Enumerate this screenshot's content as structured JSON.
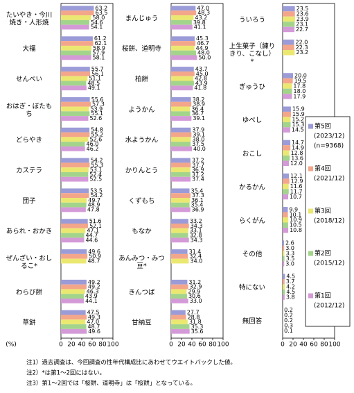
{
  "chart_data": [
    {
      "type": "bar",
      "orientation": "horizontal",
      "xlabel": "(%)",
      "xlim": [
        0,
        100
      ],
      "xticks": [
        0,
        20,
        40,
        60,
        80,
        100
      ],
      "categories": [
        "たいやき・今川焼き・人形焼",
        "大福",
        "せんべい",
        "おはぎ・ぼたもち",
        "どらやき",
        "カステラ",
        "団子",
        "あられ・おかき",
        "ぜんざい・おしるこ*",
        "わらび餅",
        "草餅"
      ],
      "series": [
        {
          "color": "#9b9bd8",
          "values": [
            63.2,
            61.2,
            55.7,
            55.6,
            54.8,
            54.2,
            53.5,
            51.6,
            49.6,
            49.2,
            47.5
          ],
          "value_labels": [
            "63.2",
            "61.2",
            "55.7",
            "55.6",
            "54.8",
            "54.2",
            "53.5",
            "51.6",
            "49.6",
            "49.2",
            "47.5"
          ]
        },
        {
          "color": "#f4a68a",
          "values": [
            63.5,
            62.1,
            56.1,
            57.3,
            55.2,
            55.3,
            54.2,
            52.1,
            50.9,
            49.2,
            49.3
          ],
          "value_labels": [
            "63.5",
            "62.1",
            "56.1",
            "57.3",
            "55.2",
            "55.3",
            "54.2",
            "52.1",
            "50.9",
            "49.2",
            "49.3"
          ]
        },
        {
          "color": "#ebe872",
          "values": [
            58.0,
            58.9,
            51.1,
            53.9,
            52.6,
            53.1,
            49.7,
            47.1,
            48.7,
            46.3,
            47.0
          ],
          "value_labels": [
            "58.0",
            "58.9",
            "51.1",
            "53.9",
            "52.6",
            "53.1",
            "49.7",
            "47.1",
            "48.7",
            "46.3",
            "47.0"
          ]
        },
        {
          "color": "#a3d48c",
          "values": [
            54.6,
            57.9,
            48.5,
            55.1,
            46.0,
            52.4,
            48.9,
            44.7,
            null,
            43.9,
            48.7
          ],
          "value_labels": [
            "54.6",
            "57.9",
            "48.5",
            "55.1",
            "46.0",
            "52.4",
            "48.9",
            "44.7",
            null,
            "43.9",
            "48.7"
          ]
        },
        {
          "color": "#d49ad8",
          "values": [
            54.1,
            58.1,
            49.1,
            52.6,
            46.2,
            52.5,
            47.8,
            44.6,
            null,
            44.1,
            49.6
          ],
          "value_labels": [
            "54.1",
            "58.1",
            "49.1",
            "52.6",
            "46.2",
            "52.5",
            "47.8",
            "44.6",
            null,
            "44.1",
            "49.6"
          ]
        }
      ]
    },
    {
      "type": "bar",
      "orientation": "horizontal",
      "xlim": [
        0,
        100
      ],
      "xticks": [
        0,
        20,
        40,
        60,
        80,
        100
      ],
      "categories": [
        "まんじゅう",
        "桜餅、道明寺",
        "柏餅",
        "ようかん",
        "水ようかん",
        "かりんとう",
        "くずもち",
        "もなか",
        "あんみつ・みつ豆*",
        "きんつば",
        "甘納豆"
      ],
      "series": [
        {
          "color": "#9b9bd8",
          "values": [
            47.0,
            45.3,
            43.7,
            38.2,
            37.9,
            37.2,
            35.4,
            33.2,
            31.4,
            31.2,
            27.7
          ],
          "value_labels": [
            "47.0",
            "45.3",
            "43.7",
            "38.2",
            "37.9",
            "37.2",
            "35.4",
            "33.2",
            "31.4",
            "31.2",
            "27.7"
          ]
        },
        {
          "color": "#f4a68a",
          "values": [
            48.3,
            46.7,
            45.0,
            38.9,
            39.1,
            37.7,
            37.3,
            34.3,
            32.4,
            32.9,
            28.8
          ],
          "value_labels": [
            "48.3",
            "46.7",
            "45.0",
            "38.9",
            "39.1",
            "37.7",
            "37.3",
            "34.3",
            "32.4",
            "32.9",
            "28.8"
          ]
        },
        {
          "color": "#ebe872",
          "values": [
            43.2,
            44.9,
            42.8,
            36.4,
            38.0,
            36.9,
            36.1,
            33.1,
            34.0,
            29.9,
            31.8
          ],
          "value_labels": [
            "43.2",
            "44.9",
            "42.8",
            "36.4",
            "38.0",
            "36.9",
            "36.1",
            "33.1",
            "34.0",
            "29.9",
            "31.8"
          ]
        },
        {
          "color": "#a3d48c",
          "values": [
            39.8,
            48.0,
            43.9,
            36.7,
            37.5,
            37.2,
            35.4,
            32.8,
            null,
            30.6,
            35.3
          ],
          "value_labels": [
            "39.8",
            "48.0",
            "43.9",
            "36.7",
            "37.5",
            "37.2",
            "35.4",
            "32.8",
            null,
            "30.6",
            "35.3"
          ]
        },
        {
          "color": "#d49ad8",
          "values": [
            41.1,
            50.0,
            41.8,
            39.1,
            40.0,
            37.4,
            36.9,
            34.3,
            null,
            33.0,
            35.6
          ],
          "value_labels": [
            "41.1",
            "50.0",
            "41.8",
            "39.1",
            "40.0",
            "37.4",
            "36.9",
            "34.3",
            null,
            "33.0",
            "35.6"
          ]
        }
      ]
    },
    {
      "type": "bar",
      "orientation": "horizontal",
      "xlim": [
        0,
        100
      ],
      "xticks": [
        0,
        20,
        40,
        60,
        80,
        100
      ],
      "categories": [
        "ういろう",
        "上生菓子（練りきり、こなし）*",
        "ぎゅうひ",
        "ゆべし",
        "おこし",
        "かるかん",
        "らくがん",
        "その他",
        "特にない",
        "無回答"
      ],
      "series": [
        {
          "name": "第5回",
          "period": "(2023/12)",
          "n": "(n=9368)",
          "color": "#9b9bd8",
          "values": [
            23.5,
            22.0,
            20.0,
            15.9,
            14.7,
            12.1,
            9.9,
            2.6,
            4.5,
            0.2
          ],
          "value_labels": [
            "23.5",
            "22.0",
            "20.0",
            "15.9",
            "14.7",
            "12.1",
            "9.9",
            "2.6",
            "4.5",
            "0.2"
          ]
        },
        {
          "name": "第4回",
          "period": "(2021/12)",
          "color": "#f4a68a",
          "values": [
            23.6,
            22.3,
            19.5,
            15.9,
            14.9,
            12.9,
            10.1,
            3.0,
            3.7,
            0.2
          ],
          "value_labels": [
            "23.6",
            "22.3",
            "19.5",
            "15.9",
            "14.9",
            "12.9",
            "10.1",
            "3.0",
            "3.7",
            "0.2"
          ]
        },
        {
          "name": "第3回",
          "period": "(2018/12)",
          "color": "#ebe872",
          "values": [
            23.9,
            23.2,
            17.8,
            15.2,
            12.8,
            11.6,
            10.9,
            3.3,
            4.2,
            0.2
          ],
          "value_labels": [
            "23.9",
            "23.2",
            "17.8",
            "15.2",
            "12.8",
            "11.6",
            "10.9",
            "3.3",
            "4.2",
            "0.2"
          ]
        },
        {
          "name": "第2回",
          "period": "(2015/12)",
          "color": "#a3d48c",
          "values": [
            23.1,
            null,
            18.0,
            15.3,
            13.6,
            11.7,
            10.5,
            3.5,
            4.5,
            0.3
          ],
          "value_labels": [
            "23.1",
            null,
            "18.0",
            "15.3",
            "13.6",
            "11.7",
            "10.5",
            "3.5",
            "4.5",
            "0.3"
          ]
        },
        {
          "name": "第1回",
          "period": "(2012/12)",
          "color": "#d49ad8",
          "values": [
            22.7,
            null,
            17.9,
            14.5,
            12.0,
            10.7,
            10.8,
            3.0,
            3.8,
            0.1
          ],
          "value_labels": [
            "22.7",
            null,
            "17.9",
            "14.5",
            "12.0",
            "10.7",
            "10.8",
            "3.0",
            "3.8",
            "0.1"
          ]
        }
      ]
    }
  ],
  "notes": [
    "注1）過去調査は、今回調査の性年代構成比にあわせてウエイトバックした値。",
    "注2）*は第1～2回にはない。",
    "注3）第1～2回では「桜餅、道明寺」は「桜餅」となっている。"
  ]
}
